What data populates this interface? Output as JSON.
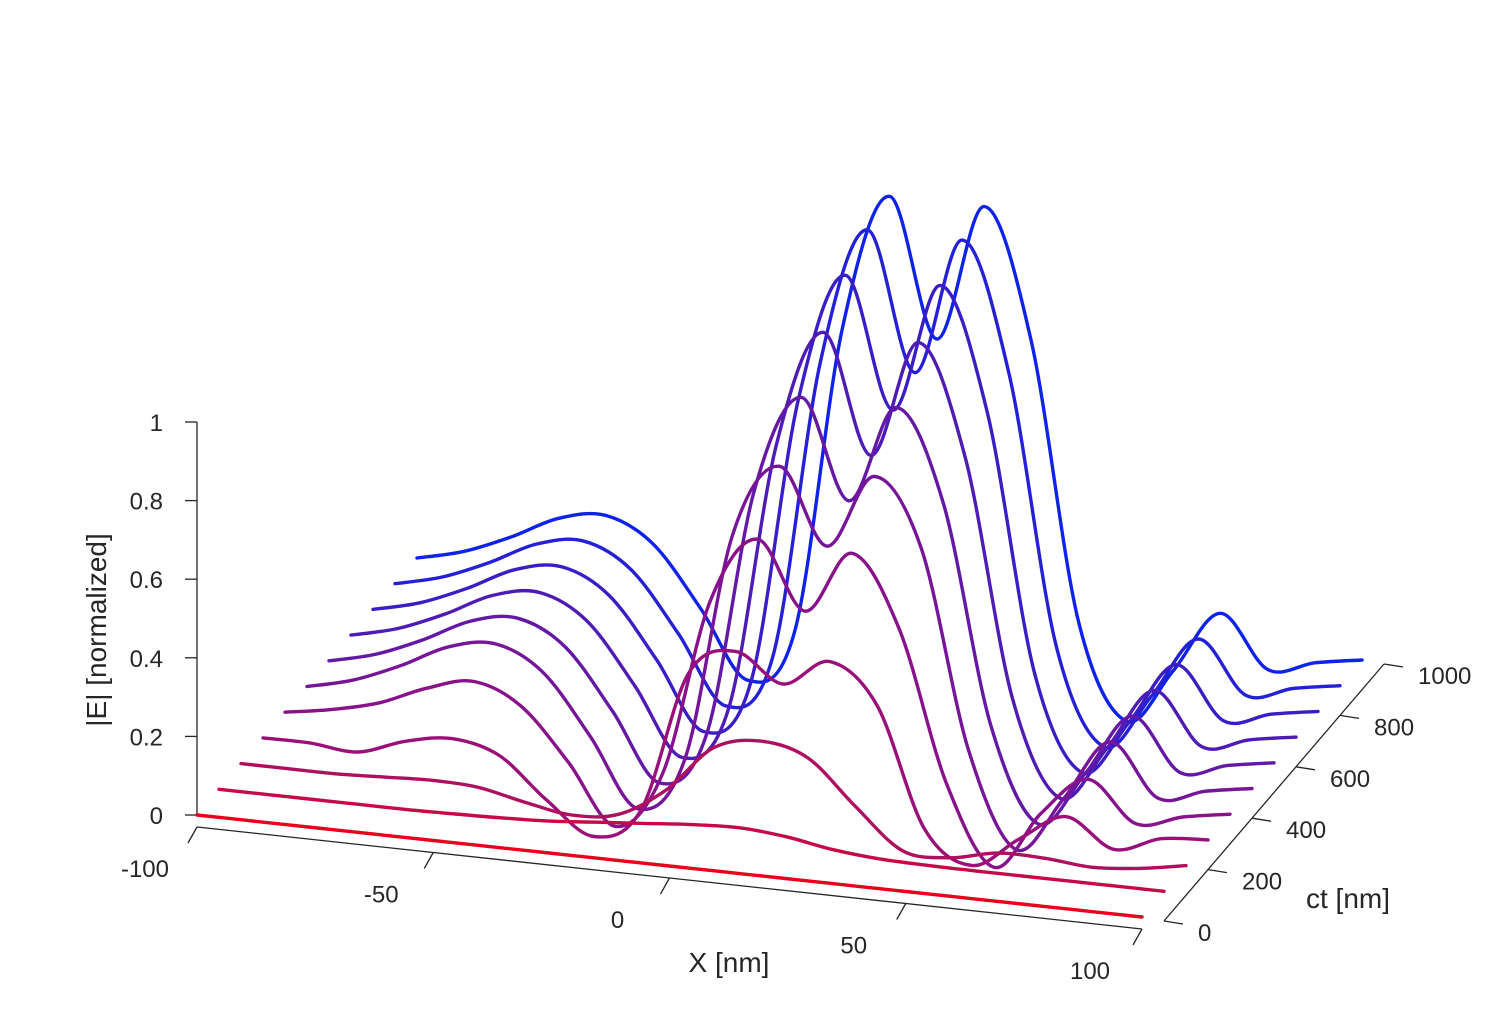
{
  "chart_data": {
    "type": "line",
    "projection": "3d-waterfall",
    "title": "",
    "xlabel": "X [nm]",
    "ylabel": "ct [nm]",
    "zlabel": "|E| [normalized]",
    "xlim": [
      -100,
      100
    ],
    "ylim": [
      0,
      1000
    ],
    "zlim": [
      0,
      1
    ],
    "x_ticks": [
      -100,
      -50,
      0,
      50,
      100
    ],
    "x_tick_labels": [
      "-100",
      "-50",
      "0",
      "50",
      "100"
    ],
    "y_ticks": [
      0,
      200,
      400,
      600,
      800,
      1000
    ],
    "y_tick_labels": [
      "0",
      "200",
      "400",
      "600",
      "800",
      "1000"
    ],
    "z_ticks": [
      0,
      0.2,
      0.4,
      0.6,
      0.8,
      1
    ],
    "z_tick_labels": [
      "0",
      "0.2",
      "0.4",
      "0.6",
      "0.8",
      "1"
    ],
    "x": [
      -100,
      -90,
      -80,
      -70,
      -60,
      -50,
      -40,
      -30,
      -20,
      -10,
      0,
      10,
      20,
      30,
      40,
      50,
      60,
      70,
      80,
      90,
      100
    ],
    "series": [
      {
        "name": "ct = 0",
        "ct": 0,
        "color": "#e8001c",
        "values": [
          0,
          0,
          0,
          0,
          0,
          0,
          0,
          0,
          0,
          0,
          0,
          0,
          0,
          0,
          0,
          0,
          0,
          0,
          0,
          0,
          0
        ]
      },
      {
        "name": "ct = 100",
        "ct": 100,
        "color": "#c50a45",
        "values": [
          0,
          0,
          0,
          0,
          0,
          0.002,
          0.005,
          0.01,
          0.02,
          0.03,
          0.04,
          0.045,
          0.035,
          0.015,
          0.004,
          0.001,
          0,
          0,
          0,
          0,
          0
        ]
      },
      {
        "name": "ct = 200",
        "ct": 200,
        "color": "#b00e5e",
        "values": [
          0,
          0,
          0,
          0.005,
          0.01,
          0.005,
          -0.02,
          -0.04,
          -0.025,
          0.05,
          0.17,
          0.2,
          0.17,
          0.06,
          -0.04,
          -0.045,
          -0.02,
          -0.02,
          -0.03,
          -0.02,
          0
        ]
      },
      {
        "name": "ct = 300",
        "ct": 300,
        "color": "#9b1078",
        "values": [
          0,
          0,
          -0.01,
          0.03,
          0.05,
          0.02,
          -0.08,
          -0.16,
          -0.08,
          0.28,
          0.35,
          0.28,
          0.35,
          0.25,
          -0.05,
          -0.13,
          -0.05,
          0.02,
          -0.05,
          -0.01,
          0
        ]
      },
      {
        "name": "ct = 400",
        "ct": 400,
        "color": "#88128a",
        "values": [
          0,
          0.02,
          0.05,
          0.1,
          0.13,
          0.08,
          -0.05,
          -0.2,
          -0.05,
          0.4,
          0.57,
          0.4,
          0.56,
          0.38,
          0.0,
          -0.2,
          -0.05,
          0.05,
          -0.05,
          -0.02,
          0
        ]
      },
      {
        "name": "ct = 500",
        "ct": 500,
        "color": "#761597",
        "values": [
          0,
          0.03,
          0.08,
          0.14,
          0.16,
          0.1,
          -0.05,
          -0.22,
          -0.08,
          0.5,
          0.69,
          0.5,
          0.69,
          0.52,
          0.02,
          -0.22,
          -0.08,
          0.08,
          -0.05,
          -0.02,
          0
        ]
      },
      {
        "name": "ct = 600",
        "ct": 600,
        "color": "#6318a6",
        "values": [
          0,
          0.03,
          0.08,
          0.14,
          0.16,
          0.1,
          -0.05,
          -0.22,
          -0.08,
          0.55,
          0.8,
          0.55,
          0.8,
          0.57,
          0.02,
          -0.22,
          -0.08,
          0.08,
          -0.05,
          -0.02,
          0
        ]
      },
      {
        "name": "ct = 700",
        "ct": 700,
        "color": "#4e1bb5",
        "values": [
          0,
          0.03,
          0.08,
          0.14,
          0.16,
          0.1,
          -0.05,
          -0.22,
          -0.08,
          0.6,
          0.9,
          0.6,
          0.9,
          0.62,
          0.02,
          -0.22,
          -0.08,
          0.08,
          -0.05,
          -0.02,
          0
        ]
      },
      {
        "name": "ct = 800",
        "ct": 800,
        "color": "#3a1dc5",
        "values": [
          0,
          0.03,
          0.08,
          0.14,
          0.16,
          0.1,
          -0.05,
          -0.22,
          -0.08,
          0.65,
          0.98,
          0.65,
          0.98,
          0.67,
          0.02,
          -0.22,
          -0.08,
          0.08,
          -0.05,
          -0.02,
          0
        ]
      },
      {
        "name": "ct = 900",
        "ct": 900,
        "color": "#2520d6",
        "values": [
          0,
          0.03,
          0.08,
          0.14,
          0.16,
          0.1,
          -0.05,
          -0.22,
          -0.08,
          0.68,
          1.03,
          0.68,
          1.03,
          0.7,
          0.02,
          -0.22,
          -0.08,
          0.08,
          -0.05,
          -0.02,
          0
        ]
      },
      {
        "name": "ct = 1000",
        "ct": 1000,
        "color": "#0f22e8",
        "values": [
          0,
          0.03,
          0.08,
          0.14,
          0.16,
          0.1,
          -0.05,
          -0.22,
          -0.08,
          0.7,
          1.05,
          0.7,
          1.05,
          0.72,
          0.02,
          -0.22,
          -0.08,
          0.08,
          -0.05,
          -0.02,
          0
        ]
      }
    ]
  }
}
